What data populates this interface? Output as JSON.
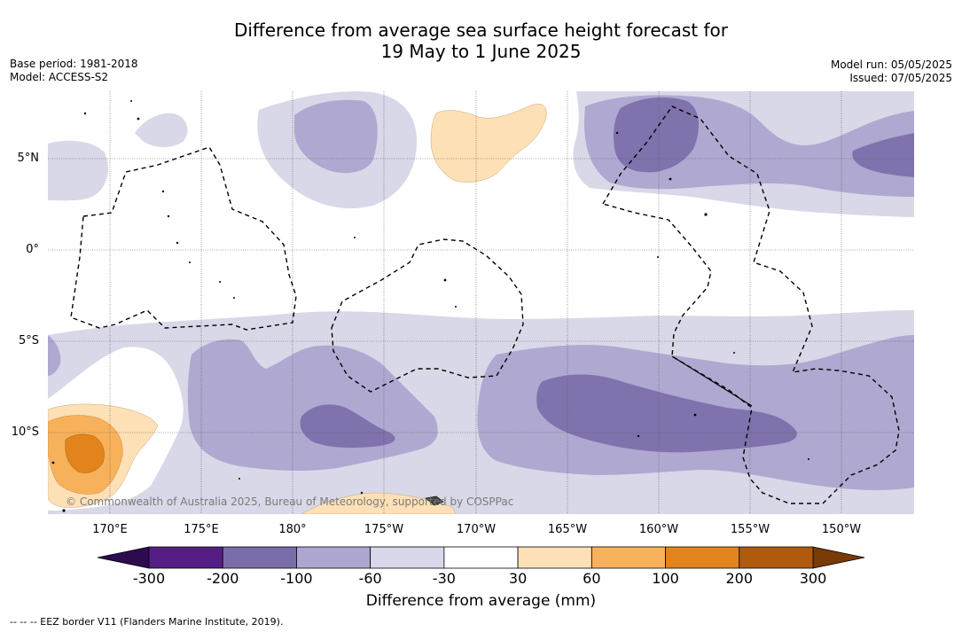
{
  "title": {
    "line1": "Difference from average sea surface height forecast for",
    "line2": "19 May to 1 June 2025"
  },
  "meta": {
    "base_period": "Base period: 1981-2018",
    "model": "Model: ACCESS-S2",
    "model_run": "Model run: 05/05/2025",
    "issued": "Issued: 07/05/2025"
  },
  "map": {
    "lat_labels": [
      "5°N",
      "0°",
      "5°S",
      "10°S"
    ],
    "lon_labels": [
      "170°E",
      "175°E",
      "180°",
      "175°W",
      "170°W",
      "165°W",
      "160°W",
      "155°W",
      "150°W"
    ],
    "copyright": "© Commonwealth of Australia 2025, Bureau of Meteorology, supported by COSPPac",
    "colors": {
      "minus_30_60": "#d8d8e8",
      "minus_60_100": "#afa8d0",
      "minus_100_200": "#8072ad",
      "plus_30_60": "#fde0b5",
      "plus_60_100": "#f8b15b",
      "plus_100_200": "#e2841b",
      "eez_border": "#000000"
    }
  },
  "colorbar": {
    "ticks": [
      "-300",
      "-200",
      "-100",
      "-60",
      "-30",
      "30",
      "60",
      "100",
      "200",
      "300"
    ],
    "colors": [
      "#541e85",
      "#7b6caa",
      "#aca6d0",
      "#d8d8ea",
      "#ffffff",
      "#fde0b5",
      "#f8b15b",
      "#e2841b",
      "#b05a0e"
    ],
    "extend_low": "#2e0a4e",
    "extend_high": "#7a3a06",
    "label": "Difference from average (mm)"
  },
  "footer": "--  --  -- EEZ border V11 (Flanders Marine Institute, 2019)."
}
